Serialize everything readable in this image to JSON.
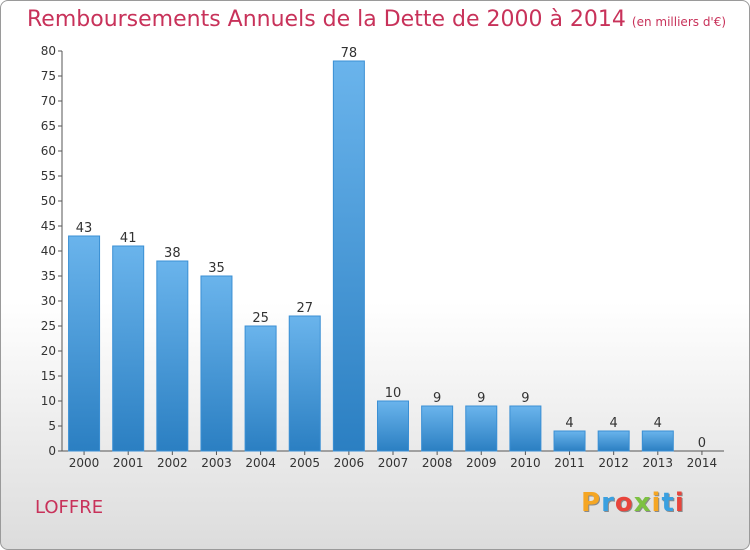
{
  "title": "Remboursements Annuels de la Dette de 2000 à 2014",
  "subtitle": "(en milliers d'€)",
  "commune": "LOFFRE",
  "logo": {
    "letters": [
      "P",
      "r",
      "o",
      "x",
      "i",
      "t",
      "i"
    ],
    "colors": [
      "#f5a623",
      "#3aa0e0",
      "#e8453c",
      "#7dc142",
      "#f5a623",
      "#3aa0e0",
      "#e8453c"
    ]
  },
  "colors": {
    "bar_top": "#6ab4ec",
    "bar_bottom": "#2b7fc2",
    "title": "#c8325a"
  },
  "chart_data": {
    "type": "bar",
    "title": "Remboursements Annuels de la Dette de 2000 à 2014",
    "categories": [
      "2000",
      "2001",
      "2002",
      "2003",
      "2004",
      "2005",
      "2006",
      "2007",
      "2008",
      "2009",
      "2010",
      "2011",
      "2012",
      "2013",
      "2014"
    ],
    "values": [
      43,
      41,
      38,
      35,
      25,
      27,
      78,
      10,
      9,
      9,
      9,
      4,
      4,
      4,
      0
    ],
    "ylim": [
      0,
      80
    ],
    "yticks": [
      0,
      5,
      10,
      15,
      20,
      25,
      30,
      35,
      40,
      45,
      50,
      55,
      60,
      65,
      70,
      75,
      80
    ],
    "grid": false
  }
}
